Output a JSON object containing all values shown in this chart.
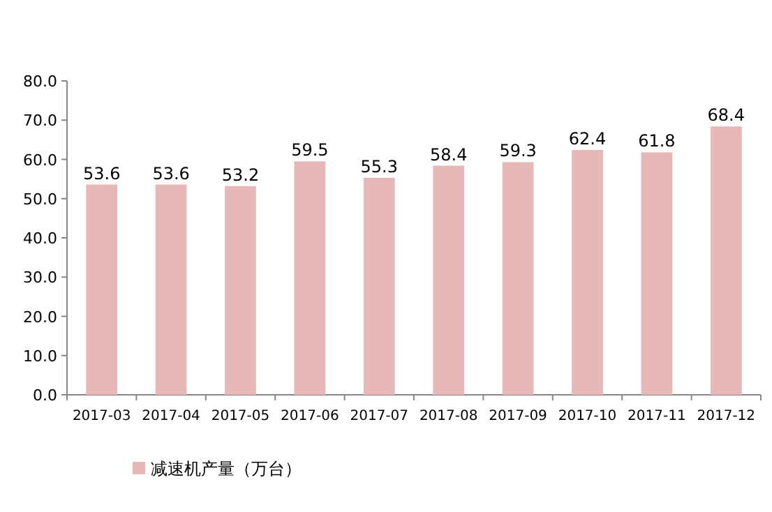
{
  "chart_data": {
    "type": "bar",
    "categories": [
      "2017-03",
      "2017-04",
      "2017-05",
      "2017-06",
      "2017-07",
      "2017-08",
      "2017-09",
      "2017-10",
      "2017-11",
      "2017-12"
    ],
    "series": [
      {
        "name": "减速机产量（万台）",
        "color": "#e6b8b7",
        "values": [
          53.6,
          53.6,
          53.2,
          59.5,
          55.3,
          58.4,
          59.3,
          62.4,
          61.8,
          68.4
        ]
      }
    ],
    "ylim": [
      0,
      80
    ],
    "yticks": [
      {
        "value": 0,
        "label": "0.0"
      },
      {
        "value": 10,
        "label": "10.0"
      },
      {
        "value": 20,
        "label": "20.0"
      },
      {
        "value": 30,
        "label": "30.0"
      },
      {
        "value": 40,
        "label": "40.0"
      },
      {
        "value": 50,
        "label": "50.0"
      },
      {
        "value": 60,
        "label": "60.0"
      },
      {
        "value": 70,
        "label": "70.0"
      },
      {
        "value": 80,
        "label": "80.0"
      }
    ],
    "data_labels": true,
    "legend": "bottom"
  }
}
